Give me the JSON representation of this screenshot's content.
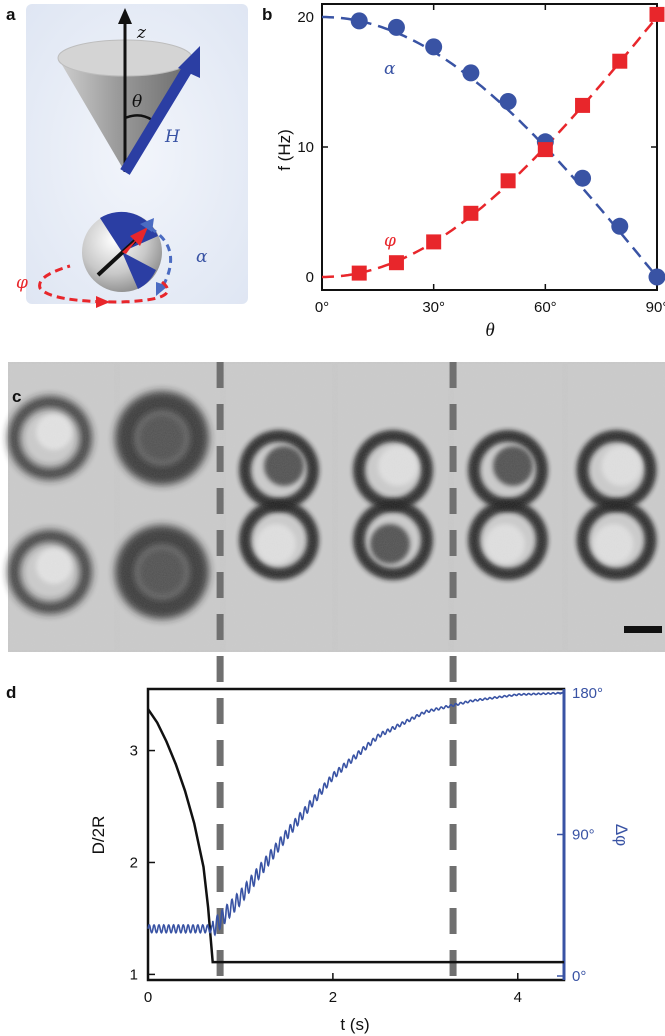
{
  "panel_labels": {
    "a": "a",
    "b": "b",
    "c": "c",
    "d": "d"
  },
  "panel_a": {
    "axis_z": "z",
    "angle": "θ",
    "field": "H",
    "alpha": "α",
    "phi": "φ",
    "colors": {
      "field": "#2b3ea3",
      "alpha": "#4a6bc2",
      "phi": "#e8262b"
    }
  },
  "chart_data": [
    {
      "type": "scatter",
      "panel": "b",
      "xlabel": "θ",
      "ylabel": "f (Hz)",
      "xlim": [
        0,
        90
      ],
      "ylim": [
        -1,
        21
      ],
      "x_ticks": [
        0,
        30,
        60,
        90
      ],
      "x_tick_labels": [
        "0°",
        "30°",
        "60°",
        "90°"
      ],
      "y_ticks": [
        0,
        10,
        20
      ],
      "y_tick_labels": [
        "0",
        "10",
        "20"
      ],
      "series": [
        {
          "name": "α",
          "color": "#3953a4",
          "marker": "circle",
          "x": [
            10,
            20,
            30,
            40,
            50,
            60,
            70,
            80,
            90
          ],
          "y": [
            19.7,
            19.2,
            17.7,
            15.7,
            13.5,
            10.4,
            7.6,
            3.9,
            0.0
          ],
          "fit": "dashed"
        },
        {
          "name": "φ",
          "color": "#e8262b",
          "marker": "square",
          "x": [
            10,
            20,
            30,
            40,
            50,
            60,
            70,
            80,
            90
          ],
          "y": [
            0.3,
            1.1,
            2.7,
            4.9,
            7.4,
            9.8,
            13.2,
            16.6,
            20.2
          ],
          "fit": "dashed"
        }
      ]
    },
    {
      "type": "line",
      "panel": "d",
      "xlabel": "t (s)",
      "ylabel": "D/2R",
      "y2label": "Δφ",
      "xlim": [
        0,
        4.5
      ],
      "ylim": [
        0.95,
        3.55
      ],
      "y2lim": [
        0,
        180
      ],
      "x_ticks": [
        0,
        2,
        4
      ],
      "x_tick_labels": [
        "0",
        "2",
        "4"
      ],
      "y_ticks": [
        1,
        2,
        3
      ],
      "y_tick_labels": [
        "1",
        "2",
        "3"
      ],
      "y2_ticks": [
        0,
        90,
        180
      ],
      "y2_tick_labels": [
        "0°",
        "90°",
        "180°"
      ],
      "series": [
        {
          "name": "D/2R",
          "color": "#111111",
          "axis": "left",
          "x": [
            0,
            0.1,
            0.2,
            0.3,
            0.4,
            0.5,
            0.6,
            0.65,
            0.68,
            0.7,
            4.5
          ],
          "y": [
            3.37,
            3.25,
            3.08,
            2.88,
            2.64,
            2.35,
            1.96,
            1.6,
            1.3,
            1.11,
            1.11
          ]
        },
        {
          "name": "Δφ",
          "color": "#3953a4",
          "axis": "right",
          "x": [
            0,
            0.7,
            1.0,
            1.5,
            2.0,
            2.5,
            3.0,
            3.5,
            4.0,
            4.5
          ],
          "y": [
            30,
            30,
            50,
            90,
            127,
            153,
            168,
            175,
            179,
            180
          ]
        }
      ],
      "dashed_markers_t": [
        0.78,
        3.3
      ]
    }
  ],
  "panel_c": {
    "frames": 6,
    "scale_bar": true
  }
}
